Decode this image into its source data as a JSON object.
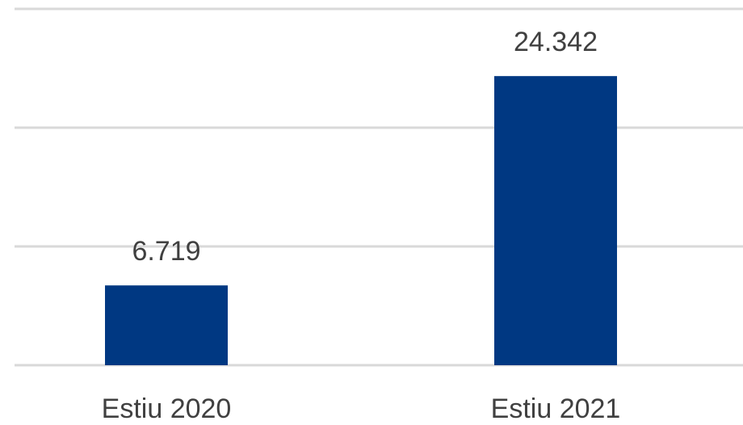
{
  "chart_data": {
    "type": "bar",
    "categories": [
      "Estiu 2020",
      "Estiu 2021"
    ],
    "values": [
      6719,
      24342
    ],
    "value_labels": [
      "6.719",
      "24.342"
    ],
    "color": "#003882",
    "ylim": [
      0,
      30000
    ],
    "yticks": [
      0,
      10000,
      20000,
      30000
    ],
    "grid": true
  }
}
